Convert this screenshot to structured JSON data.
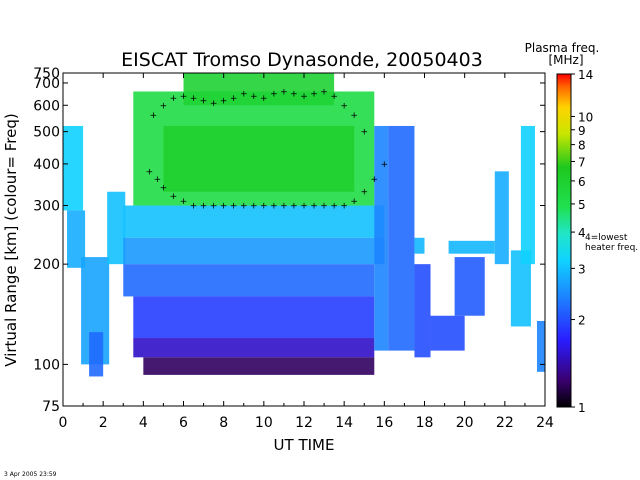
{
  "chart_data": {
    "type": "heatmap",
    "title": "EISCAT Tromso Dynasonde,  20050403",
    "xlabel": "UT TIME",
    "ylabel": "Virtual Range [km]   (colour= Freq)",
    "xlim": [
      0,
      24
    ],
    "ylim": [
      75,
      750
    ],
    "y_scale": "log",
    "x_ticks": [
      0,
      2,
      4,
      6,
      8,
      10,
      12,
      14,
      16,
      18,
      20,
      22,
      24
    ],
    "y_ticks": [
      75,
      100,
      200,
      300,
      400,
      500,
      600,
      700,
      750
    ],
    "colorbar": {
      "title_line1": "Plasma freq.",
      "title_line2": "[MHz]",
      "scale": "log",
      "range": [
        1,
        14
      ],
      "ticks": [
        1,
        2,
        3,
        4,
        5,
        6,
        7,
        8,
        9,
        10,
        14
      ],
      "annotation_line1": "4=lowest",
      "annotation_line2": "heater freq."
    },
    "timestamp": "3 Apr 2005 23:59",
    "series": [
      {
        "name": "plus markers",
        "x": [
          4.3,
          4.7,
          5.0,
          5.5,
          6.0,
          6.5,
          7.0,
          7.5,
          8.0,
          8.5,
          9.0,
          9.5,
          10.0,
          10.5,
          11.0,
          11.5,
          12.0,
          12.5,
          13.0,
          13.5,
          14.0,
          14.5,
          15.0,
          15.5,
          16.0
        ],
        "y": [
          380,
          360,
          340,
          320,
          310,
          300,
          300,
          300,
          300,
          300,
          300,
          300,
          300,
          300,
          300,
          300,
          300,
          300,
          300,
          300,
          300,
          310,
          330,
          360,
          400
        ]
      },
      {
        "name": "plus markers upper",
        "x": [
          4.5,
          5.0,
          5.5,
          6.0,
          6.5,
          7.0,
          7.5,
          8.0,
          8.5,
          9.0,
          9.5,
          10.0,
          10.5,
          11.0,
          11.5,
          12.0,
          12.5,
          13.0,
          13.5,
          14.0,
          14.5,
          15.0
        ],
        "y": [
          560,
          600,
          630,
          640,
          630,
          620,
          610,
          620,
          630,
          650,
          640,
          630,
          650,
          660,
          650,
          640,
          650,
          660,
          640,
          600,
          560,
          500
        ]
      }
    ],
    "bands": [
      {
        "x0": 0.0,
        "x1": 1.0,
        "y0": 290,
        "y1": 520,
        "f": 3.2
      },
      {
        "x0": 0.2,
        "x1": 1.1,
        "y0": 195,
        "y1": 290,
        "f": 2.8
      },
      {
        "x0": 0.9,
        "x1": 2.3,
        "y0": 100,
        "y1": 210,
        "f": 2.7
      },
      {
        "x0": 1.3,
        "x1": 2.0,
        "y0": 92,
        "y1": 125,
        "f": 2.2
      },
      {
        "x0": 2.2,
        "x1": 3.1,
        "y0": 200,
        "y1": 330,
        "f": 3.0
      },
      {
        "x0": 3.0,
        "x1": 16.0,
        "y0": 240,
        "y1": 300,
        "f": 3.0
      },
      {
        "x0": 3.5,
        "x1": 15.5,
        "y0": 300,
        "y1": 660,
        "f": 5.2
      },
      {
        "x0": 5.0,
        "x1": 14.5,
        "y0": 330,
        "y1": 520,
        "f": 6.0
      },
      {
        "x0": 6.0,
        "x1": 13.5,
        "y0": 600,
        "y1": 750,
        "f": 5.8
      },
      {
        "x0": 3.0,
        "x1": 16.0,
        "y0": 200,
        "y1": 240,
        "f": 2.6
      },
      {
        "x0": 3.0,
        "x1": 15.5,
        "y0": 160,
        "y1": 200,
        "f": 2.2
      },
      {
        "x0": 3.5,
        "x1": 15.5,
        "y0": 120,
        "y1": 160,
        "f": 1.9
      },
      {
        "x0": 3.5,
        "x1": 15.5,
        "y0": 105,
        "y1": 120,
        "f": 1.5
      },
      {
        "x0": 4.0,
        "x1": 15.5,
        "y0": 93,
        "y1": 105,
        "f": 1.2
      },
      {
        "x0": 15.5,
        "x1": 16.2,
        "y0": 110,
        "y1": 520,
        "f": 2.4
      },
      {
        "x0": 16.2,
        "x1": 17.5,
        "y0": 110,
        "y1": 520,
        "f": 2.2
      },
      {
        "x0": 17.5,
        "x1": 18.0,
        "y0": 215,
        "y1": 240,
        "f": 2.9
      },
      {
        "x0": 17.5,
        "x1": 18.3,
        "y0": 105,
        "y1": 200,
        "f": 2.0
      },
      {
        "x0": 18.3,
        "x1": 20.0,
        "y0": 110,
        "y1": 140,
        "f": 2.0
      },
      {
        "x0": 19.2,
        "x1": 21.5,
        "y0": 215,
        "y1": 235,
        "f": 2.9
      },
      {
        "x0": 19.5,
        "x1": 21.0,
        "y0": 140,
        "y1": 210,
        "f": 2.1
      },
      {
        "x0": 21.5,
        "x1": 22.2,
        "y0": 200,
        "y1": 380,
        "f": 2.8
      },
      {
        "x0": 22.3,
        "x1": 23.3,
        "y0": 130,
        "y1": 220,
        "f": 3.0
      },
      {
        "x0": 22.8,
        "x1": 23.5,
        "y0": 200,
        "y1": 520,
        "f": 3.2
      },
      {
        "x0": 23.6,
        "x1": 24.0,
        "y0": 95,
        "y1": 135,
        "f": 2.4
      }
    ]
  },
  "colors": {
    "background": "#ffffff",
    "marker": "#000000",
    "axis": "#000000"
  }
}
